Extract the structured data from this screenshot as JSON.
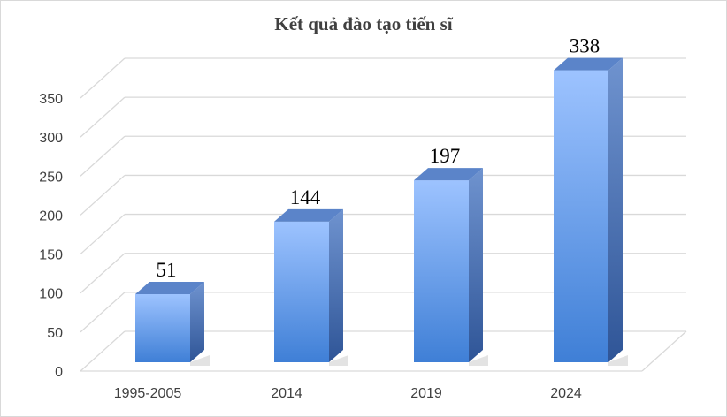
{
  "chart_data": {
    "type": "bar",
    "title": "Kết quả đào tạo tiến sĩ",
    "categories": [
      "1995-2005",
      "2014",
      "2019",
      "2024"
    ],
    "values": [
      51,
      144,
      197,
      338
    ],
    "value_labels": [
      "51",
      "144",
      "197",
      "338"
    ],
    "y_ticks": [
      0,
      50,
      100,
      150,
      200,
      250,
      300,
      350
    ],
    "y_tick_labels": [
      "0",
      "50",
      "100",
      "150",
      "200",
      "250",
      "300",
      "350"
    ],
    "ylim": [
      0,
      350
    ],
    "grid": true,
    "style": "3d-column",
    "colors": {
      "bar_top": "#9dc3ff",
      "bar_bottom": "#3f7fd6",
      "bar_side": "#2f5597",
      "bar_cap": "#5b84c9",
      "grid": "#d9d9d9"
    }
  }
}
